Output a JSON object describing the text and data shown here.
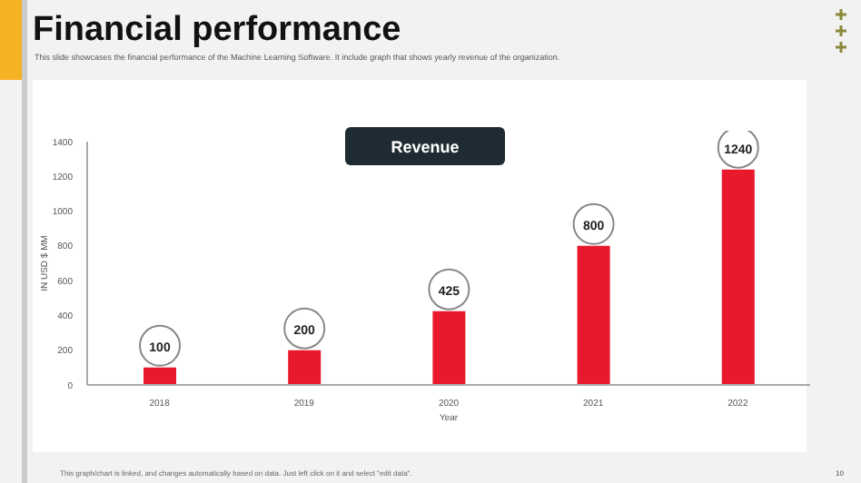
{
  "chart_data": {
    "type": "bar",
    "title": "Financial performance",
    "subtitle": "This slide showcases the financial performance of the Machine Learning Software. It include graph that  shows yearly revenue of the organization.",
    "xlabel": "Year",
    "ylabel": "IN USD $ MM",
    "categories": [
      "2018",
      "2019",
      "2020",
      "2021",
      "2022"
    ],
    "values": [
      100,
      200,
      425,
      800,
      1240
    ],
    "color": "#e8192c",
    "data_labels": true,
    "ylim": [
      0,
      1400
    ],
    "yticks": [
      0,
      200,
      400,
      600,
      800,
      1000,
      1200,
      1400
    ],
    "annotations": [
      "Revenue",
      "This graph/chart is linked, and changes automatically based on data. Just left click on it and select \"edit data\".",
      "10"
    ]
  }
}
